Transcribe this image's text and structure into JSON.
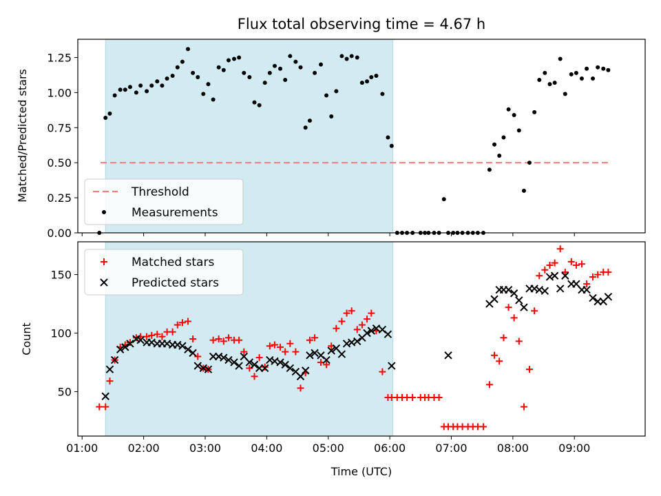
{
  "chart_data": {
    "title": "Flux total observing time = 4.67 h",
    "xlabel": "Time (UTC)",
    "x_unit": "hours (UTC)",
    "xlim": [
      0.93,
      10.15
    ],
    "xticks": [
      {
        "value": 1,
        "label": "01:00"
      },
      {
        "value": 2,
        "label": "02:00"
      },
      {
        "value": 3,
        "label": "03:00"
      },
      {
        "value": 4,
        "label": "04:00"
      },
      {
        "value": 5,
        "label": "05:00"
      },
      {
        "value": 6,
        "label": "06:00"
      },
      {
        "value": 7,
        "label": "07:00"
      },
      {
        "value": 8,
        "label": "08:00"
      },
      {
        "value": 9,
        "label": "09:00"
      }
    ],
    "shaded_span": {
      "x0": 1.38,
      "x1": 6.05,
      "color": "#add8e6"
    },
    "colors": {
      "threshold": "#f08080",
      "measurements": "#000000",
      "matched": "#ff0000",
      "predicted": "#000000"
    },
    "panels": [
      {
        "type": "scatter",
        "ylabel": "Matched/Predicted stars",
        "ylim": [
          0,
          1.38
        ],
        "yticks": [
          "0.00",
          "0.25",
          "0.50",
          "0.75",
          "1.00",
          "1.25"
        ],
        "legend_position": "lower-left",
        "threshold": {
          "name": "Threshold",
          "value": 0.5,
          "x": [
            1.3,
            9.57
          ]
        },
        "series": [
          {
            "name": "Measurements",
            "marker": "dot",
            "x": [
              1.28,
              1.38,
              1.45,
              1.53,
              1.62,
              1.7,
              1.78,
              1.88,
              1.95,
              2.05,
              2.13,
              2.22,
              2.3,
              2.38,
              2.47,
              2.55,
              2.63,
              2.72,
              2.8,
              2.88,
              2.97,
              3.05,
              3.13,
              3.22,
              3.3,
              3.38,
              3.47,
              3.55,
              3.63,
              3.72,
              3.8,
              3.88,
              3.97,
              4.05,
              4.13,
              4.22,
              4.3,
              4.38,
              4.47,
              4.55,
              4.63,
              4.7,
              4.78,
              4.88,
              4.97,
              5.05,
              5.13,
              5.22,
              5.3,
              5.38,
              5.47,
              5.55,
              5.63,
              5.7,
              5.78,
              5.88,
              5.97,
              6.03,
              6.12,
              6.2,
              6.28,
              6.37,
              6.5,
              6.57,
              6.63,
              6.72,
              6.8,
              6.88,
              6.95,
              7.03,
              7.1,
              7.18,
              7.27,
              7.35,
              7.43,
              7.52,
              7.62,
              7.7,
              7.78,
              7.85,
              7.93,
              8.02,
              8.1,
              8.18,
              8.27,
              8.35,
              8.43,
              8.52,
              8.6,
              8.68,
              8.77,
              8.85,
              8.95,
              9.03,
              9.12,
              9.2,
              9.3,
              9.38,
              9.47,
              9.55
            ],
            "y": [
              0.0,
              0.82,
              0.85,
              0.98,
              1.02,
              1.02,
              1.04,
              1.0,
              1.05,
              1.01,
              1.05,
              1.08,
              1.05,
              1.1,
              1.12,
              1.18,
              1.22,
              1.31,
              1.14,
              1.11,
              0.99,
              1.06,
              0.95,
              1.18,
              1.16,
              1.23,
              1.24,
              1.25,
              1.14,
              1.11,
              0.93,
              0.91,
              1.07,
              1.14,
              1.19,
              1.17,
              1.09,
              1.26,
              1.22,
              1.18,
              0.75,
              0.8,
              1.14,
              1.2,
              0.98,
              0.83,
              1.01,
              1.26,
              1.24,
              1.26,
              1.25,
              1.07,
              1.08,
              1.11,
              1.12,
              0.99,
              0.68,
              0.62,
              0.0,
              0.0,
              0.0,
              0.0,
              0.0,
              0.0,
              0.0,
              0.0,
              0.0,
              0.24,
              0.0,
              0.0,
              0.0,
              0.0,
              0.0,
              0.0,
              0.0,
              0.0,
              0.45,
              0.63,
              0.55,
              0.68,
              0.88,
              0.84,
              0.73,
              0.3,
              0.5,
              0.86,
              1.09,
              1.14,
              1.06,
              1.07,
              1.24,
              0.99,
              1.13,
              1.14,
              1.1,
              1.17,
              1.1,
              1.18,
              1.17,
              1.16
            ]
          }
        ]
      },
      {
        "type": "scatter",
        "ylabel": "Count",
        "ylim": [
          12,
          178
        ],
        "yticks": [
          "50",
          "100",
          "150"
        ],
        "legend_position": "upper-left",
        "series": [
          {
            "name": "Matched stars",
            "marker": "plus",
            "x": [
              1.28,
              1.38,
              1.45,
              1.53,
              1.62,
              1.7,
              1.78,
              1.88,
              1.95,
              2.05,
              2.13,
              2.22,
              2.3,
              2.38,
              2.47,
              2.55,
              2.63,
              2.72,
              2.8,
              2.88,
              2.97,
              3.05,
              3.13,
              3.22,
              3.3,
              3.38,
              3.47,
              3.55,
              3.63,
              3.72,
              3.8,
              3.88,
              3.97,
              4.05,
              4.13,
              4.22,
              4.3,
              4.38,
              4.47,
              4.55,
              4.63,
              4.7,
              4.78,
              4.88,
              4.97,
              5.05,
              5.13,
              5.22,
              5.3,
              5.38,
              5.47,
              5.55,
              5.63,
              5.7,
              5.78,
              5.88,
              5.97,
              6.03,
              6.12,
              6.2,
              6.28,
              6.37,
              6.5,
              6.57,
              6.63,
              6.72,
              6.8,
              6.88,
              6.95,
              7.03,
              7.1,
              7.18,
              7.27,
              7.35,
              7.43,
              7.52,
              7.62,
              7.7,
              7.78,
              7.85,
              7.93,
              8.02,
              8.1,
              8.18,
              8.27,
              8.35,
              8.43,
              8.52,
              8.6,
              8.68,
              8.77,
              8.85,
              8.95,
              9.03,
              9.12,
              9.2,
              9.3,
              9.38,
              9.47,
              9.55
            ],
            "y": [
              37,
              37,
              59,
              77,
              88,
              90,
              92,
              96,
              97,
              97,
              98,
              99,
              97,
              101,
              101,
              107,
              109,
              110,
              95,
              80,
              70,
              69,
              94,
              95,
              93,
              96,
              94,
              94,
              84,
              70,
              63,
              79,
              71,
              89,
              90,
              88,
              84,
              91,
              84,
              53,
              66,
              94,
              96,
              75,
              73,
              89,
              104,
              110,
              117,
              119,
              103,
              107,
              112,
              117,
              102,
              67,
              45,
              45,
              45,
              45,
              45,
              45,
              45,
              45,
              45,
              45,
              45,
              20,
              20,
              20,
              20,
              20,
              20,
              20,
              20,
              20,
              56,
              81,
              76,
              96,
              122,
              113,
              93,
              37,
              69,
              119,
              149,
              154,
              158,
              160,
              172,
              152,
              161,
              158,
              159,
              142,
              148,
              150,
              152,
              152
            ]
          },
          {
            "name": "Predicted stars",
            "marker": "cross",
            "x": [
              1.38,
              1.45,
              1.53,
              1.62,
              1.7,
              1.78,
              1.88,
              1.95,
              2.05,
              2.13,
              2.22,
              2.3,
              2.38,
              2.47,
              2.55,
              2.63,
              2.72,
              2.8,
              2.88,
              2.97,
              3.05,
              3.13,
              3.22,
              3.3,
              3.38,
              3.47,
              3.55,
              3.63,
              3.72,
              3.8,
              3.88,
              3.97,
              4.05,
              4.13,
              4.22,
              4.3,
              4.38,
              4.47,
              4.55,
              4.63,
              4.7,
              4.78,
              4.88,
              4.97,
              5.05,
              5.13,
              5.22,
              5.3,
              5.38,
              5.47,
              5.55,
              5.63,
              5.7,
              5.78,
              5.88,
              5.97,
              6.03,
              6.95,
              7.62,
              7.7,
              7.78,
              7.85,
              7.93,
              8.02,
              8.1,
              8.18,
              8.27,
              8.35,
              8.43,
              8.52,
              8.6,
              8.68,
              8.77,
              8.85,
              8.95,
              9.03,
              9.12,
              9.2,
              9.3,
              9.38,
              9.47,
              9.55
            ],
            "y": [
              46,
              69,
              77,
              86,
              88,
              91,
              95,
              94,
              92,
              92,
              91,
              91,
              91,
              90,
              90,
              89,
              86,
              83,
              72,
              70,
              69,
              80,
              80,
              79,
              77,
              75,
              72,
              80,
              75,
              73,
              70,
              70,
              77,
              76,
              75,
              73,
              70,
              67,
              63,
              68,
              81,
              83,
              81,
              77,
              85,
              87,
              82,
              91,
              92,
              93,
              96,
              100,
              102,
              104,
              103,
              99,
              72,
              81,
              125,
              129,
              137,
              137,
              137,
              134,
              128,
              122,
              138,
              138,
              137,
              136,
              148,
              149,
              138,
              149,
              142,
              142,
              137,
              137,
              130,
              127,
              127,
              131
            ]
          }
        ]
      }
    ]
  }
}
